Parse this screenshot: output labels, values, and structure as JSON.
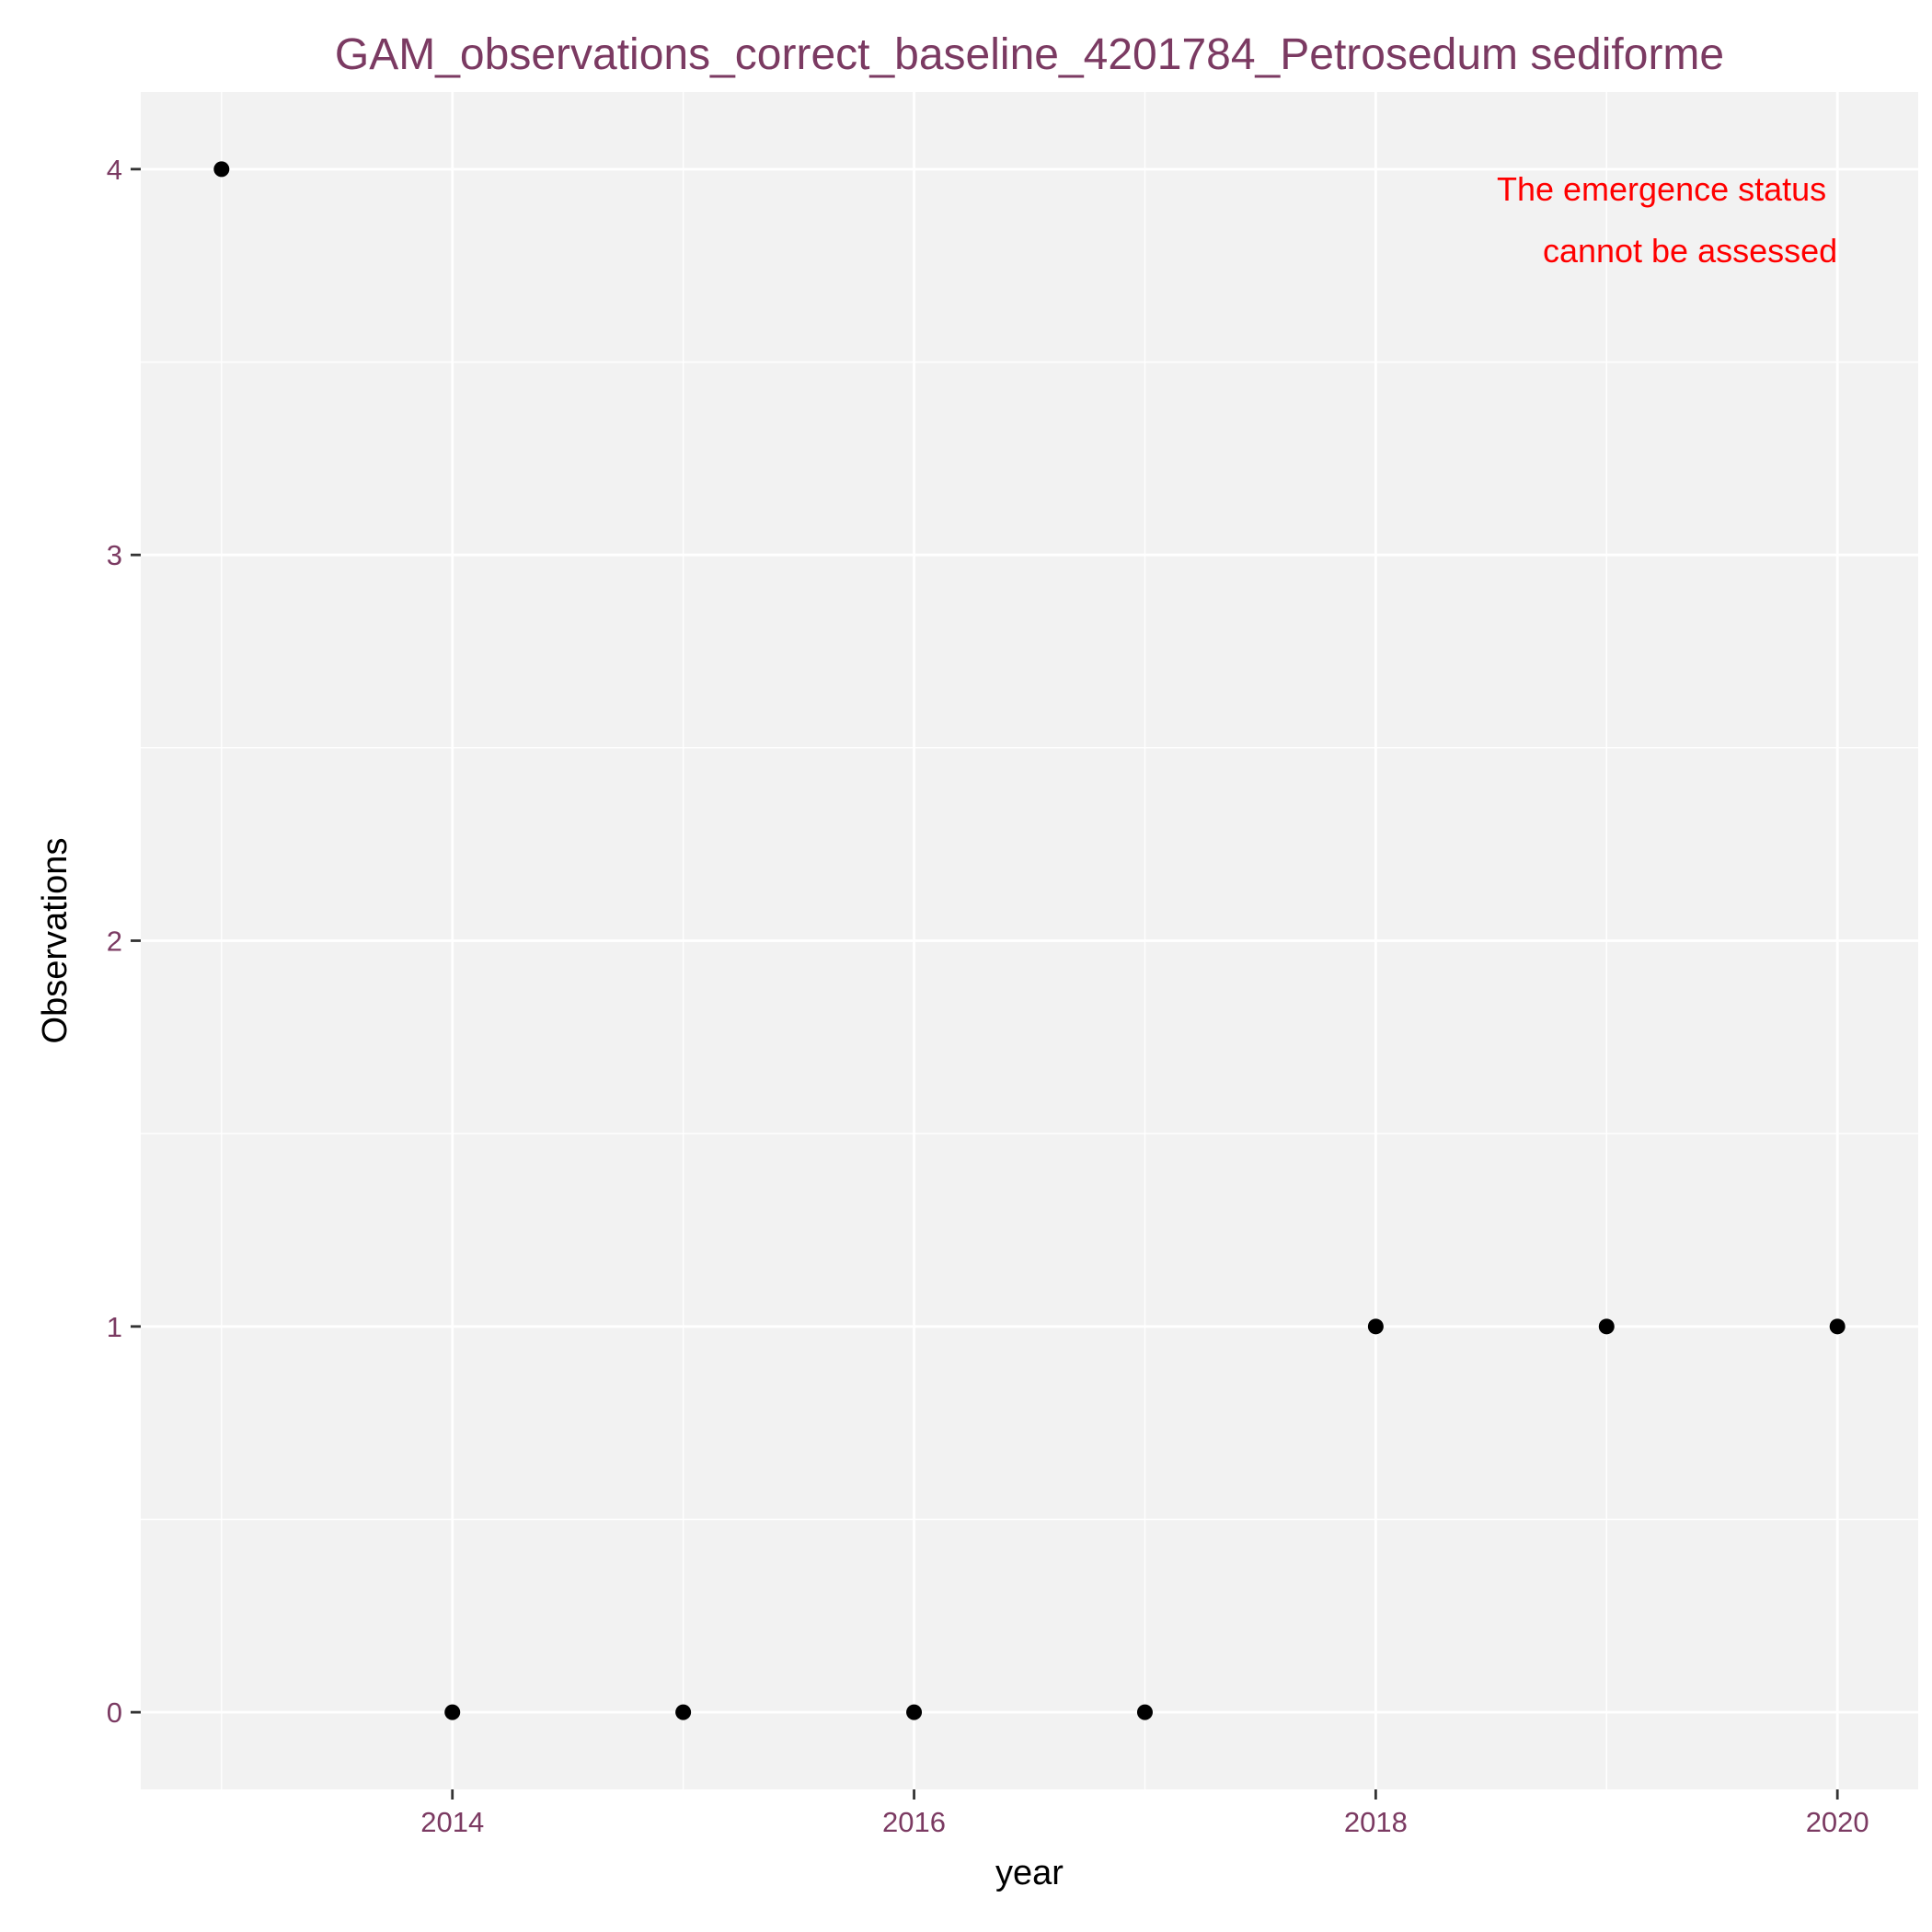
{
  "chart_data": {
    "type": "scatter",
    "title": "GAM_observations_correct_baseline_4201784_Petrosedum sediforme",
    "xlabel": "year",
    "ylabel": "Observations",
    "x_ticks": [
      2014,
      2016,
      2018,
      2020
    ],
    "y_ticks": [
      0,
      1,
      2,
      3,
      4
    ],
    "xlim": [
      2012.65,
      2020.35
    ],
    "ylim": [
      -0.2,
      4.2
    ],
    "points": [
      {
        "x": 2013,
        "y": 4
      },
      {
        "x": 2014,
        "y": 0
      },
      {
        "x": 2015,
        "y": 0
      },
      {
        "x": 2016,
        "y": 0
      },
      {
        "x": 2017,
        "y": 0
      },
      {
        "x": 2018,
        "y": 1
      },
      {
        "x": 2019,
        "y": 1
      },
      {
        "x": 2020,
        "y": 1
      }
    ],
    "annotation": [
      "The emergence status",
      "cannot be assessed"
    ],
    "grid": true,
    "colors": {
      "panel": "#f2f2f2",
      "grid": "#ffffff",
      "point": "#000000",
      "title": "#7b3a62",
      "tick_label": "#7b3a62",
      "annotation": "#ff0000",
      "axis_title": "#000000"
    }
  }
}
